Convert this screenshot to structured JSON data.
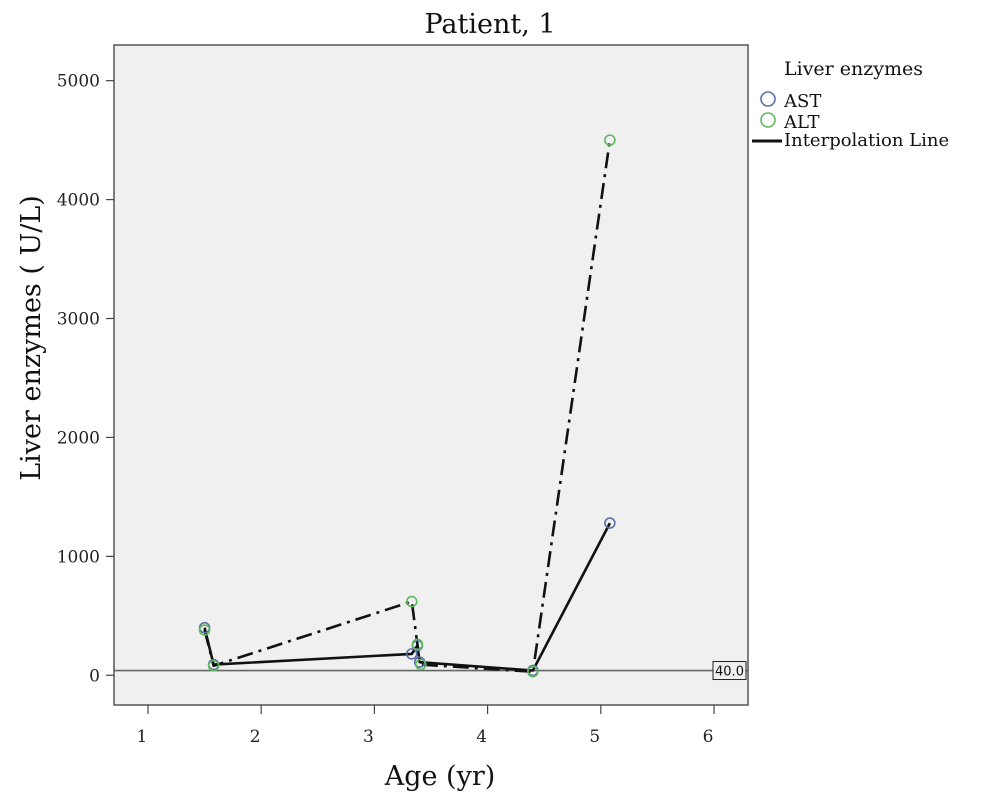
{
  "chart_data": {
    "type": "line",
    "title": "Patient, 1",
    "xlabel": "Age (yr)",
    "ylabel": "Liver enzymes ( U/L)",
    "xlim": [
      0.7,
      6.3
    ],
    "ylim": [
      -250,
      5300
    ],
    "xticks": [
      1,
      2,
      3,
      4,
      5,
      6
    ],
    "yticks": [
      0,
      1000,
      2000,
      3000,
      4000,
      5000
    ],
    "grid": false,
    "legend_position": "right",
    "legend_title": "Liver enzymes",
    "series": [
      {
        "name": "AST",
        "color": "#5b6fa8",
        "line_style": "solid",
        "points": [
          {
            "x": 1.5,
            "y": 400
          },
          {
            "x": 1.58,
            "y": 90
          },
          {
            "x": 3.33,
            "y": 180
          },
          {
            "x": 3.38,
            "y": 250
          },
          {
            "x": 3.4,
            "y": 110
          },
          {
            "x": 4.4,
            "y": 40
          },
          {
            "x": 5.08,
            "y": 1280
          }
        ]
      },
      {
        "name": "ALT",
        "color": "#5fb85f",
        "line_style": "dashdot",
        "points": [
          {
            "x": 1.5,
            "y": 380
          },
          {
            "x": 1.58,
            "y": 80
          },
          {
            "x": 3.33,
            "y": 620
          },
          {
            "x": 3.38,
            "y": 260
          },
          {
            "x": 3.41,
            "y": 90
          },
          {
            "x": 4.4,
            "y": 30
          },
          {
            "x": 5.08,
            "y": 4500
          }
        ]
      }
    ],
    "interpolation_label": "Interpolation Line",
    "reference_line": {
      "y": 40,
      "label": "40.0"
    }
  }
}
